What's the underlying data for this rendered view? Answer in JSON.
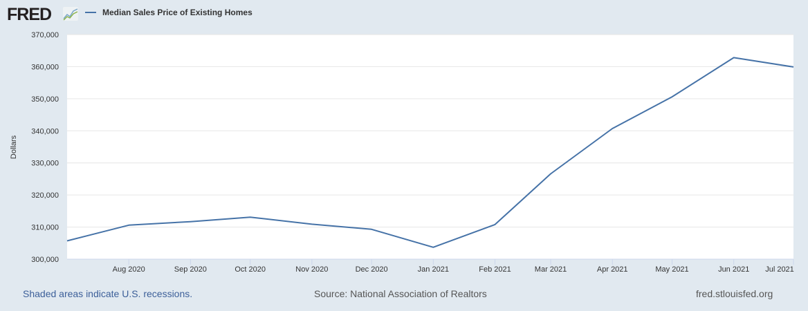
{
  "header": {
    "logo": "FRED",
    "legend_label": "Median Sales Price of Existing Homes"
  },
  "footer": {
    "recession_note": "Shaded areas indicate U.S. recessions.",
    "source": "Source: National Association of Realtors",
    "site": "fred.stlouisfed.org"
  },
  "chart_data": {
    "type": "line",
    "title": "",
    "xlabel": "",
    "ylabel": "Dollars",
    "ylim": [
      300000,
      370000
    ],
    "yticks": [
      "300,000",
      "310,000",
      "320,000",
      "330,000",
      "340,000",
      "350,000",
      "360,000",
      "370,000"
    ],
    "xticks": [
      "Aug 2020",
      "Sep 2020",
      "Oct 2020",
      "Nov 2020",
      "Dec 2020",
      "Jan 2021",
      "Feb 2021",
      "Mar 2021",
      "Apr 2021",
      "May 2021",
      "Jun 2021",
      "Jul 2021"
    ],
    "grid": true,
    "legend": "top-left",
    "color": "#4572a7",
    "series": [
      {
        "name": "Median Sales Price of Existing Homes",
        "x": [
          "2020-07-01",
          "2020-08-01",
          "2020-09-01",
          "2020-10-01",
          "2020-11-01",
          "2020-12-01",
          "2021-01-01",
          "2021-02-01",
          "2021-03-01",
          "2021-04-01",
          "2021-05-01",
          "2021-06-01",
          "2021-07-01"
        ],
        "values": [
          305700,
          310600,
          311700,
          313100,
          310900,
          309300,
          303700,
          310800,
          326600,
          340700,
          350600,
          362800,
          359900
        ]
      }
    ]
  }
}
